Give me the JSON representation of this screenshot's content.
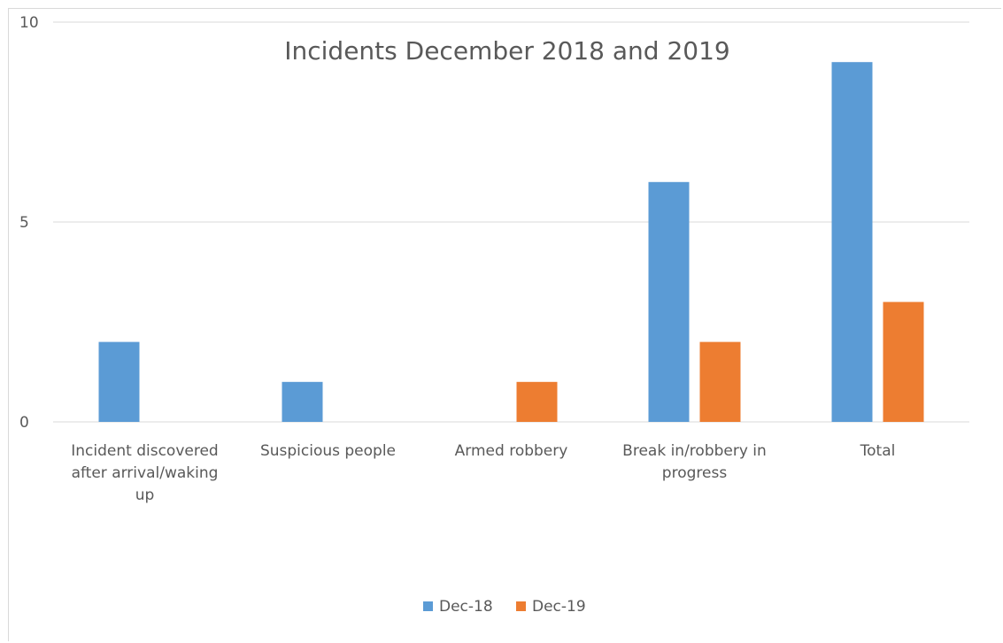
{
  "chart_data": {
    "type": "bar",
    "title": "Incidents December 2018 and 2019",
    "categories": [
      [
        "Incident discovered",
        "after arrival/waking",
        "up"
      ],
      [
        "Suspicious people"
      ],
      [
        "Armed robbery"
      ],
      [
        "Break in/robbery in",
        "progress"
      ],
      [
        "Total"
      ]
    ],
    "series": [
      {
        "name": "Dec-18",
        "color": "#5b9bd5",
        "values": [
          2,
          1,
          0,
          6,
          9
        ]
      },
      {
        "name": "Dec-19",
        "color": "#ed7d31",
        "values": [
          0,
          0,
          1,
          2,
          3
        ]
      }
    ],
    "yticks": [
      0,
      5,
      10
    ],
    "ylim": [
      0,
      10
    ],
    "grid": true,
    "legend_position": "bottom",
    "xlabel": "",
    "ylabel": ""
  }
}
